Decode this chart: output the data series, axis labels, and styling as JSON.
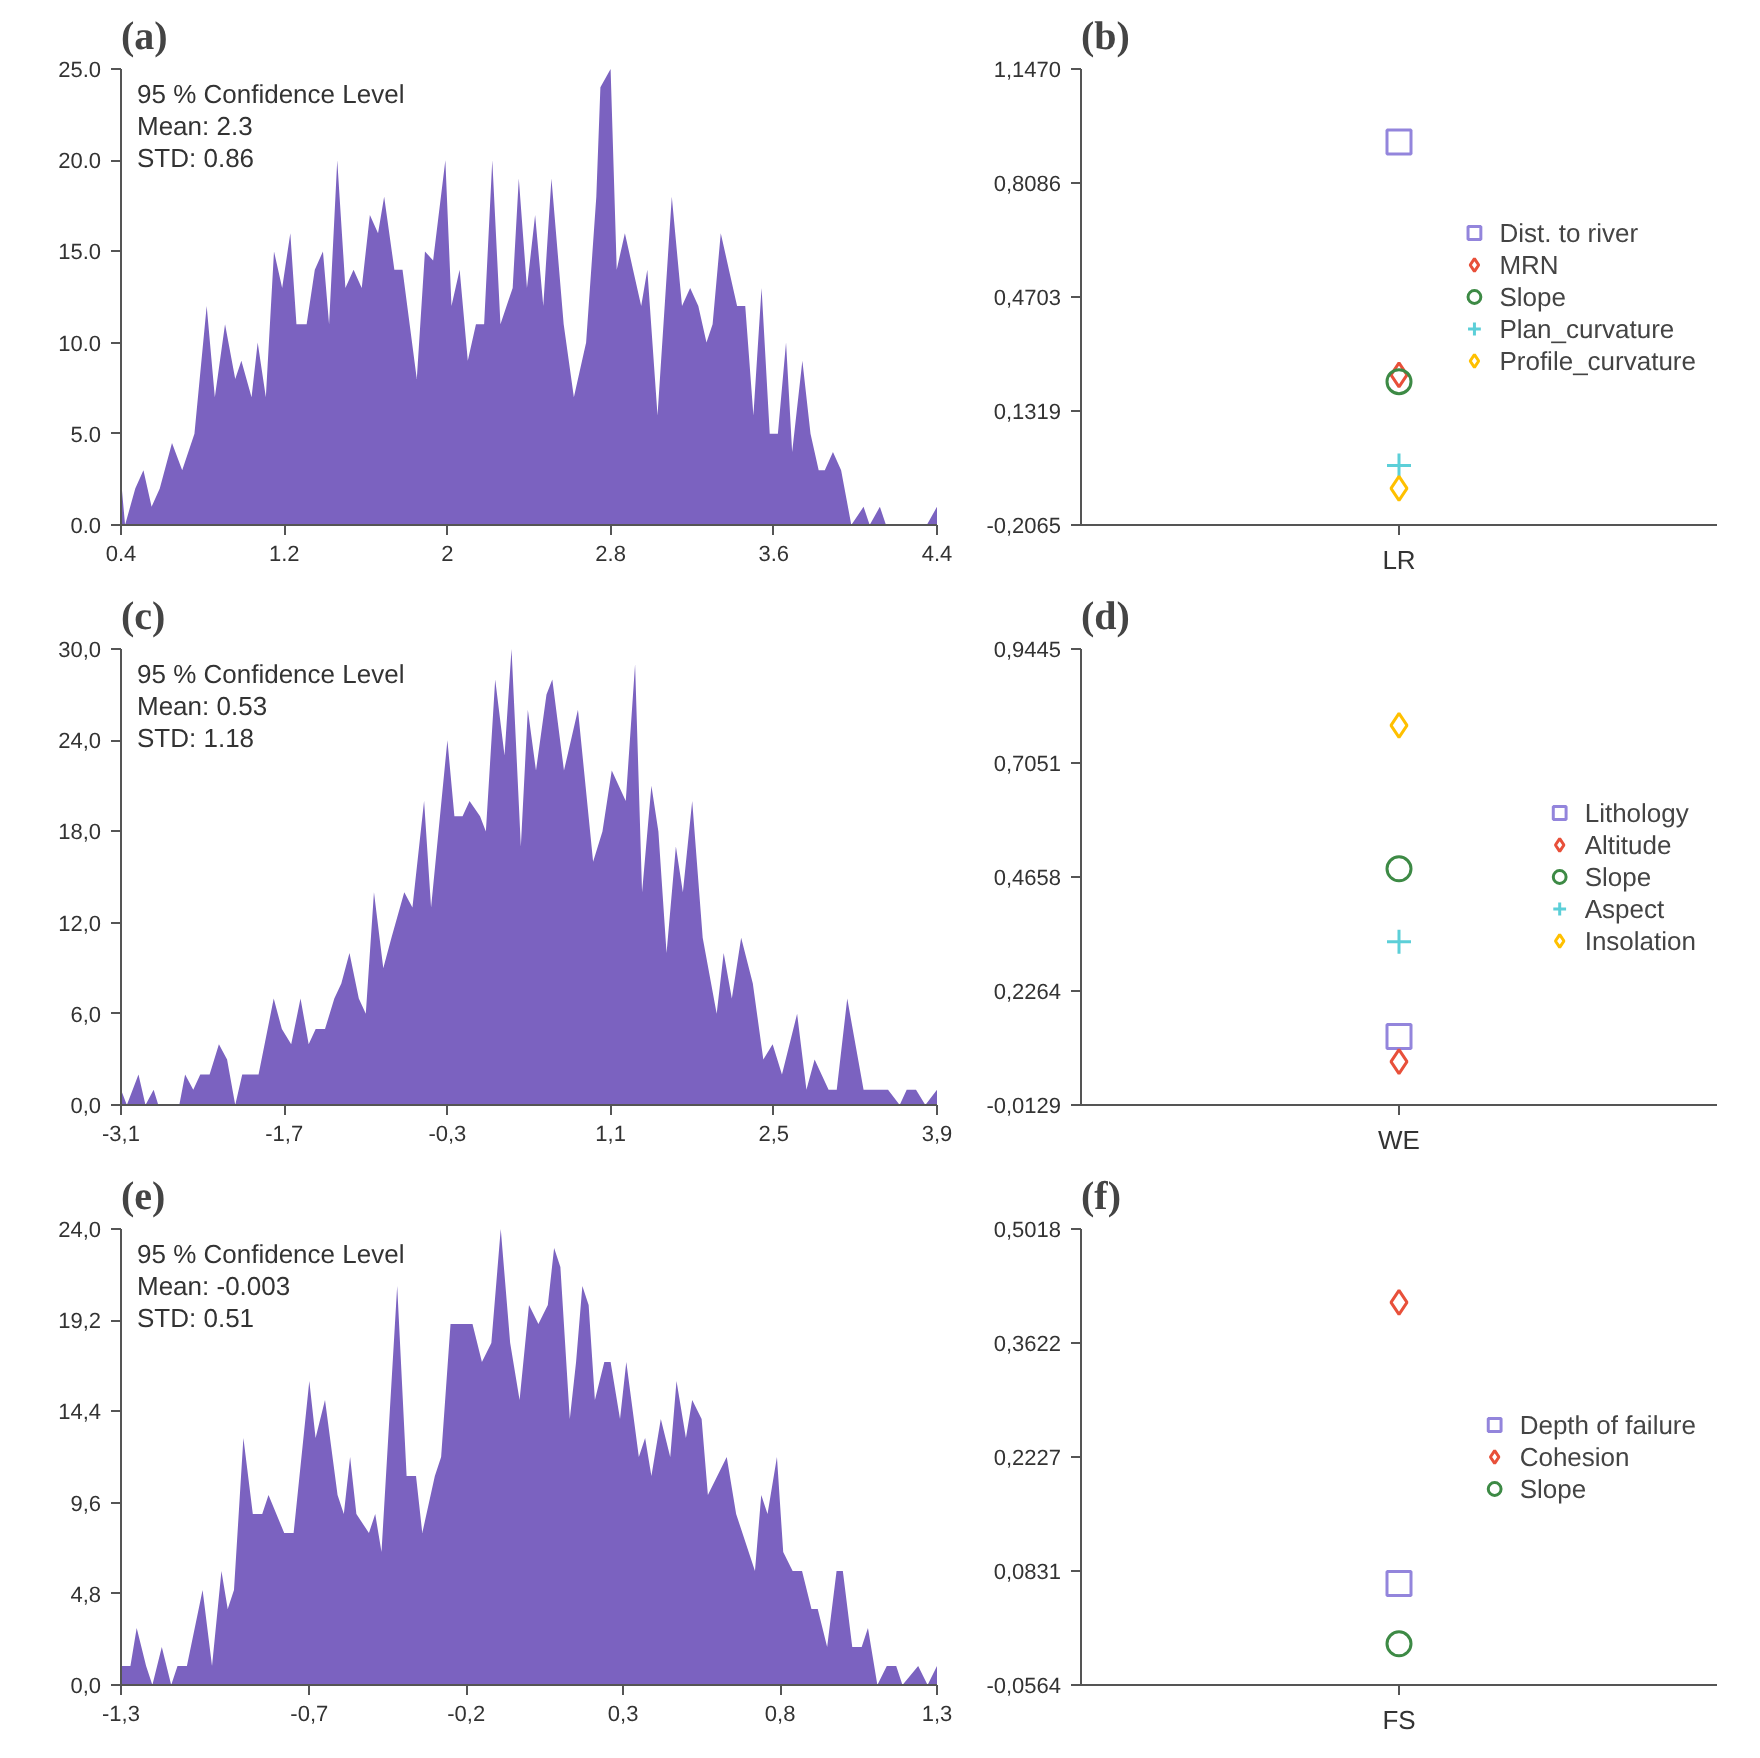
{
  "chart_data": [
    {
      "type": "area",
      "title": "(a)",
      "annotations": [
        "95 % Confidence Level",
        "Mean: 2.3",
        "STD: 0.86"
      ],
      "grid": false,
      "x": [
        0.4,
        0.42,
        0.47,
        0.51,
        0.55,
        0.59,
        0.65,
        0.7,
        0.76,
        0.82,
        0.86,
        0.91,
        0.96,
        0.99,
        1.04,
        1.07,
        1.11,
        1.15,
        1.19,
        1.23,
        1.26,
        1.31,
        1.35,
        1.39,
        1.42,
        1.46,
        1.5,
        1.54,
        1.58,
        1.62,
        1.66,
        1.69,
        1.74,
        1.78,
        1.85,
        1.89,
        1.93,
        1.99,
        2.02,
        2.06,
        2.1,
        2.14,
        2.18,
        2.22,
        2.26,
        2.32,
        2.35,
        2.39,
        2.43,
        2.47,
        2.51,
        2.57,
        2.62,
        2.68,
        2.73,
        2.75,
        2.8,
        2.83,
        2.87,
        2.91,
        2.95,
        2.98,
        3.03,
        3.1,
        3.15,
        3.19,
        3.23,
        3.27,
        3.3,
        3.34,
        3.38,
        3.42,
        3.46,
        3.5,
        3.54,
        3.58,
        3.62,
        3.66,
        3.69,
        3.74,
        3.78,
        3.82,
        3.85,
        3.89,
        3.93,
        3.98,
        4.04,
        4.07,
        4.12,
        4.15,
        4.35,
        4.4
      ],
      "series": [
        {
          "color": "#7b62c0",
          "values": [
            2.5,
            0,
            2,
            3,
            1,
            2,
            4.5,
            3,
            5,
            12,
            7,
            11,
            8,
            9,
            7,
            10,
            7,
            15,
            13,
            16,
            11,
            11,
            14,
            15,
            11,
            20,
            13,
            14,
            13,
            17,
            16,
            18,
            14,
            14,
            8,
            15,
            14.5,
            20,
            12,
            14,
            9,
            11,
            11,
            20,
            11,
            13,
            19,
            13,
            17,
            12,
            19,
            11,
            7,
            10,
            18,
            24,
            25,
            14,
            16,
            14,
            12,
            14,
            6,
            18,
            12,
            13,
            12,
            10,
            11,
            16,
            14,
            12,
            12,
            6,
            13,
            5,
            5,
            10,
            4,
            9,
            5,
            3,
            3,
            4,
            3,
            0,
            1,
            0,
            1,
            0,
            0,
            1
          ]
        }
      ],
      "xlim": [
        0.4,
        4.4
      ],
      "ylim": [
        0,
        25
      ],
      "xticks": [
        0.4,
        1.2,
        2.0,
        2.8,
        3.6,
        4.4
      ],
      "yticks": [
        {
          "value": 0,
          "label": "0.0"
        },
        {
          "value": 5,
          "label": "5.0"
        },
        {
          "value": 10,
          "label": "10.0"
        },
        {
          "value": 15,
          "label": "15.0"
        },
        {
          "value": 20,
          "label": "20.0"
        },
        {
          "value": 25,
          "label": "25.0"
        }
      ]
    },
    {
      "type": "scatter",
      "title": "(b)",
      "categories": [
        "LR"
      ],
      "legend": "right",
      "grid": false,
      "series": [
        {
          "name": "Dist. to river",
          "color": "#9385dc",
          "marker": "square",
          "values": [
            0.93
          ]
        },
        {
          "name": "MRN",
          "color": "#e8503a",
          "marker": "diamond",
          "values": [
            0.239
          ]
        },
        {
          "name": "Slope",
          "color": "#3d8a45",
          "marker": "circle",
          "values": [
            0.219
          ]
        },
        {
          "name": "Plan_curvature",
          "color": "#5ccfd8",
          "marker": "cross",
          "values": [
            -0.03
          ]
        },
        {
          "name": "Profile_curvature",
          "color": "#ffc000",
          "marker": "diamond",
          "values": [
            -0.098
          ]
        }
      ],
      "ylim": [
        -0.2065,
        1.147
      ],
      "yticks": [
        {
          "value": -0.2065,
          "label": "-0,2065"
        },
        {
          "value": 0.1319,
          "label": "0,1319"
        },
        {
          "value": 0.4703,
          "label": "0,4703"
        },
        {
          "value": 0.8086,
          "label": "0,8086"
        },
        {
          "value": 1.147,
          "label": "1,1470"
        }
      ]
    },
    {
      "type": "area",
      "title": "(c)",
      "annotations": [
        "95 % Confidence Level",
        "Mean: 0.53",
        "STD: 1.18"
      ],
      "grid": false,
      "x": [
        -3.1,
        -3.05,
        -2.95,
        -2.89,
        -2.82,
        -2.78,
        -2.6,
        -2.55,
        -2.48,
        -2.42,
        -2.34,
        -2.26,
        -2.19,
        -2.12,
        -2.06,
        -1.92,
        -1.79,
        -1.72,
        -1.64,
        -1.56,
        -1.49,
        -1.43,
        -1.35,
        -1.27,
        -1.21,
        -1.14,
        -1.06,
        -1.0,
        -0.93,
        -0.85,
        -0.78,
        -0.67,
        -0.6,
        -0.5,
        -0.44,
        -0.3,
        -0.24,
        -0.17,
        -0.11,
        -0.02,
        0.03,
        0.11,
        0.19,
        0.25,
        0.33,
        0.39,
        0.46,
        0.55,
        0.6,
        0.7,
        0.82,
        0.95,
        1.03,
        1.11,
        1.23,
        1.31,
        1.37,
        1.45,
        1.51,
        1.58,
        1.66,
        1.72,
        1.8,
        1.89,
        2.01,
        2.07,
        2.14,
        2.22,
        2.32,
        2.41,
        2.49,
        2.57,
        2.7,
        2.78,
        2.85,
        2.97,
        3.04,
        3.13,
        3.27,
        3.48,
        3.58,
        3.64,
        3.72,
        3.8,
        3.9
      ],
      "series": [
        {
          "color": "#7b62c0",
          "values": [
            1,
            0,
            2,
            0,
            1,
            0,
            0,
            2,
            1,
            2,
            2,
            4,
            3,
            0,
            2,
            2,
            7,
            5,
            4,
            7,
            4,
            5,
            5,
            7,
            8,
            10,
            7,
            6,
            14,
            9,
            11,
            14,
            13,
            20,
            13,
            24,
            19,
            19,
            20,
            19,
            18,
            28,
            23,
            30,
            17,
            26,
            22,
            27,
            28,
            22,
            26,
            16,
            18,
            22,
            20,
            29,
            14,
            21,
            18,
            10,
            17,
            14,
            20,
            11,
            6,
            10,
            7,
            11,
            8,
            3,
            4,
            2,
            6,
            1,
            3,
            1,
            1,
            7,
            1,
            1,
            0,
            1,
            1,
            0,
            1
          ]
        }
      ],
      "xlim": [
        -3.1,
        3.9
      ],
      "ylim": [
        0,
        30
      ],
      "xticks": [
        {
          "value": -3.1,
          "label": "-3,1"
        },
        {
          "value": -1.7,
          "label": "-1,7"
        },
        {
          "value": -0.3,
          "label": "-0,3"
        },
        {
          "value": 1.1,
          "label": "1,1"
        },
        {
          "value": 2.5,
          "label": "2,5"
        },
        {
          "value": 3.9,
          "label": "3,9"
        }
      ],
      "yticks": [
        {
          "value": 0,
          "label": "0,0"
        },
        {
          "value": 6,
          "label": "6,0"
        },
        {
          "value": 12,
          "label": "12,0"
        },
        {
          "value": 18,
          "label": "18,0"
        },
        {
          "value": 24,
          "label": "24,0"
        },
        {
          "value": 30,
          "label": "30,0"
        }
      ]
    },
    {
      "type": "scatter",
      "title": "(d)",
      "categories": [
        "WE"
      ],
      "legend": "right",
      "grid": false,
      "series": [
        {
          "name": "Lithology",
          "color": "#9385dc",
          "marker": "square",
          "values": [
            0.131
          ]
        },
        {
          "name": "Altitude",
          "color": "#e8503a",
          "marker": "diamond",
          "values": [
            0.078
          ]
        },
        {
          "name": "Slope",
          "color": "#3d8a45",
          "marker": "circle",
          "values": [
            0.483
          ]
        },
        {
          "name": "Aspect",
          "color": "#5ccfd8",
          "marker": "cross",
          "values": [
            0.33
          ]
        },
        {
          "name": "Insolation",
          "color": "#ffc000",
          "marker": "diamond",
          "values": [
            0.784
          ]
        }
      ],
      "ylim": [
        -0.0129,
        0.9445
      ],
      "yticks": [
        {
          "value": -0.0129,
          "label": "-0,0129"
        },
        {
          "value": 0.2264,
          "label": "0,2264"
        },
        {
          "value": 0.4658,
          "label": "0,4658"
        },
        {
          "value": 0.7051,
          "label": "0,7051"
        },
        {
          "value": 0.9445,
          "label": "0,9445"
        }
      ]
    },
    {
      "type": "area",
      "title": "(e)",
      "annotations": [
        "95 % Confidence Level",
        "Mean: -0.003",
        "STD: 0.51"
      ],
      "grid": false,
      "x": [
        -1.3,
        -1.27,
        -1.25,
        -1.22,
        -1.2,
        -1.17,
        -1.14,
        -1.12,
        -1.09,
        -1.04,
        -1.01,
        -0.98,
        -0.96,
        -0.94,
        -0.91,
        -0.88,
        -0.85,
        -0.83,
        -0.78,
        -0.75,
        -0.7,
        -0.68,
        -0.65,
        -0.61,
        -0.59,
        -0.57,
        -0.55,
        -0.51,
        -0.49,
        -0.47,
        -0.42,
        -0.39,
        -0.36,
        -0.34,
        -0.3,
        -0.28,
        -0.25,
        -0.18,
        -0.15,
        -0.12,
        -0.09,
        -0.06,
        -0.03,
        0.0,
        0.03,
        0.06,
        0.08,
        0.1,
        0.13,
        0.15,
        0.17,
        0.19,
        0.21,
        0.24,
        0.26,
        0.29,
        0.31,
        0.35,
        0.37,
        0.39,
        0.42,
        0.45,
        0.47,
        0.5,
        0.52,
        0.55,
        0.57,
        0.63,
        0.66,
        0.72,
        0.74,
        0.76,
        0.79,
        0.81,
        0.84,
        0.87,
        0.9,
        0.92,
        0.95,
        0.98,
        1.0,
        1.03,
        1.06,
        1.08,
        1.11,
        1.14,
        1.17,
        1.19,
        1.24,
        1.27,
        1.3
      ],
      "series": [
        {
          "color": "#7b62c0",
          "values": [
            1,
            1,
            3,
            1,
            0,
            2,
            0,
            1,
            1,
            5,
            1,
            6,
            4,
            5,
            13,
            9,
            9,
            10,
            8,
            8,
            16,
            13,
            15,
            10,
            9,
            12,
            9,
            8,
            9,
            7,
            21,
            11,
            11,
            8,
            11,
            12,
            19,
            19,
            17,
            18,
            24,
            18,
            15,
            20,
            19,
            20,
            23,
            22,
            14,
            17,
            21,
            20,
            15,
            17,
            17,
            14,
            17,
            12,
            13,
            11,
            14,
            12,
            16,
            13,
            15,
            14,
            10,
            12,
            9,
            6,
            10,
            9,
            12,
            7,
            6,
            6,
            4,
            4,
            2,
            6,
            6,
            2,
            2,
            3,
            0,
            1,
            1,
            0,
            1,
            0,
            1
          ]
        }
      ],
      "xlim": [
        -1.3,
        1.3
      ],
      "ylim": [
        0,
        24
      ],
      "xticks": [
        {
          "value": -1.3,
          "label": "-1,3"
        },
        {
          "value": -0.7,
          "label": "-0,7"
        },
        {
          "value": -0.2,
          "label": "-0,2"
        },
        {
          "value": 0.3,
          "label": "0,3"
        },
        {
          "value": 0.8,
          "label": "0,8"
        },
        {
          "value": 1.3,
          "label": "1,3"
        }
      ],
      "yticks": [
        {
          "value": 0,
          "label": "0,0"
        },
        {
          "value": 4.8,
          "label": "4,8"
        },
        {
          "value": 9.6,
          "label": "9,6"
        },
        {
          "value": 14.4,
          "label": "14,4"
        },
        {
          "value": 19.2,
          "label": "19,2"
        },
        {
          "value": 24,
          "label": "24,0"
        }
      ]
    },
    {
      "type": "scatter",
      "title": "(f)",
      "categories": [
        "FS"
      ],
      "legend": "right",
      "grid": false,
      "series": [
        {
          "name": "Depth of failure",
          "color": "#9385dc",
          "marker": "square",
          "values": [
            0.068
          ]
        },
        {
          "name": "Cohesion",
          "color": "#e8503a",
          "marker": "diamond",
          "values": [
            0.412
          ]
        },
        {
          "name": "Slope",
          "color": "#3d8a45",
          "marker": "circle",
          "values": [
            -0.006
          ]
        }
      ],
      "ylim": [
        -0.0564,
        0.5018
      ],
      "yticks": [
        {
          "value": -0.0564,
          "label": "-0,0564"
        },
        {
          "value": 0.0831,
          "label": "0,0831"
        },
        {
          "value": 0.2227,
          "label": "0,2227"
        },
        {
          "value": 0.3622,
          "label": "0,3622"
        },
        {
          "value": 0.5018,
          "label": "0,5018"
        }
      ]
    }
  ]
}
